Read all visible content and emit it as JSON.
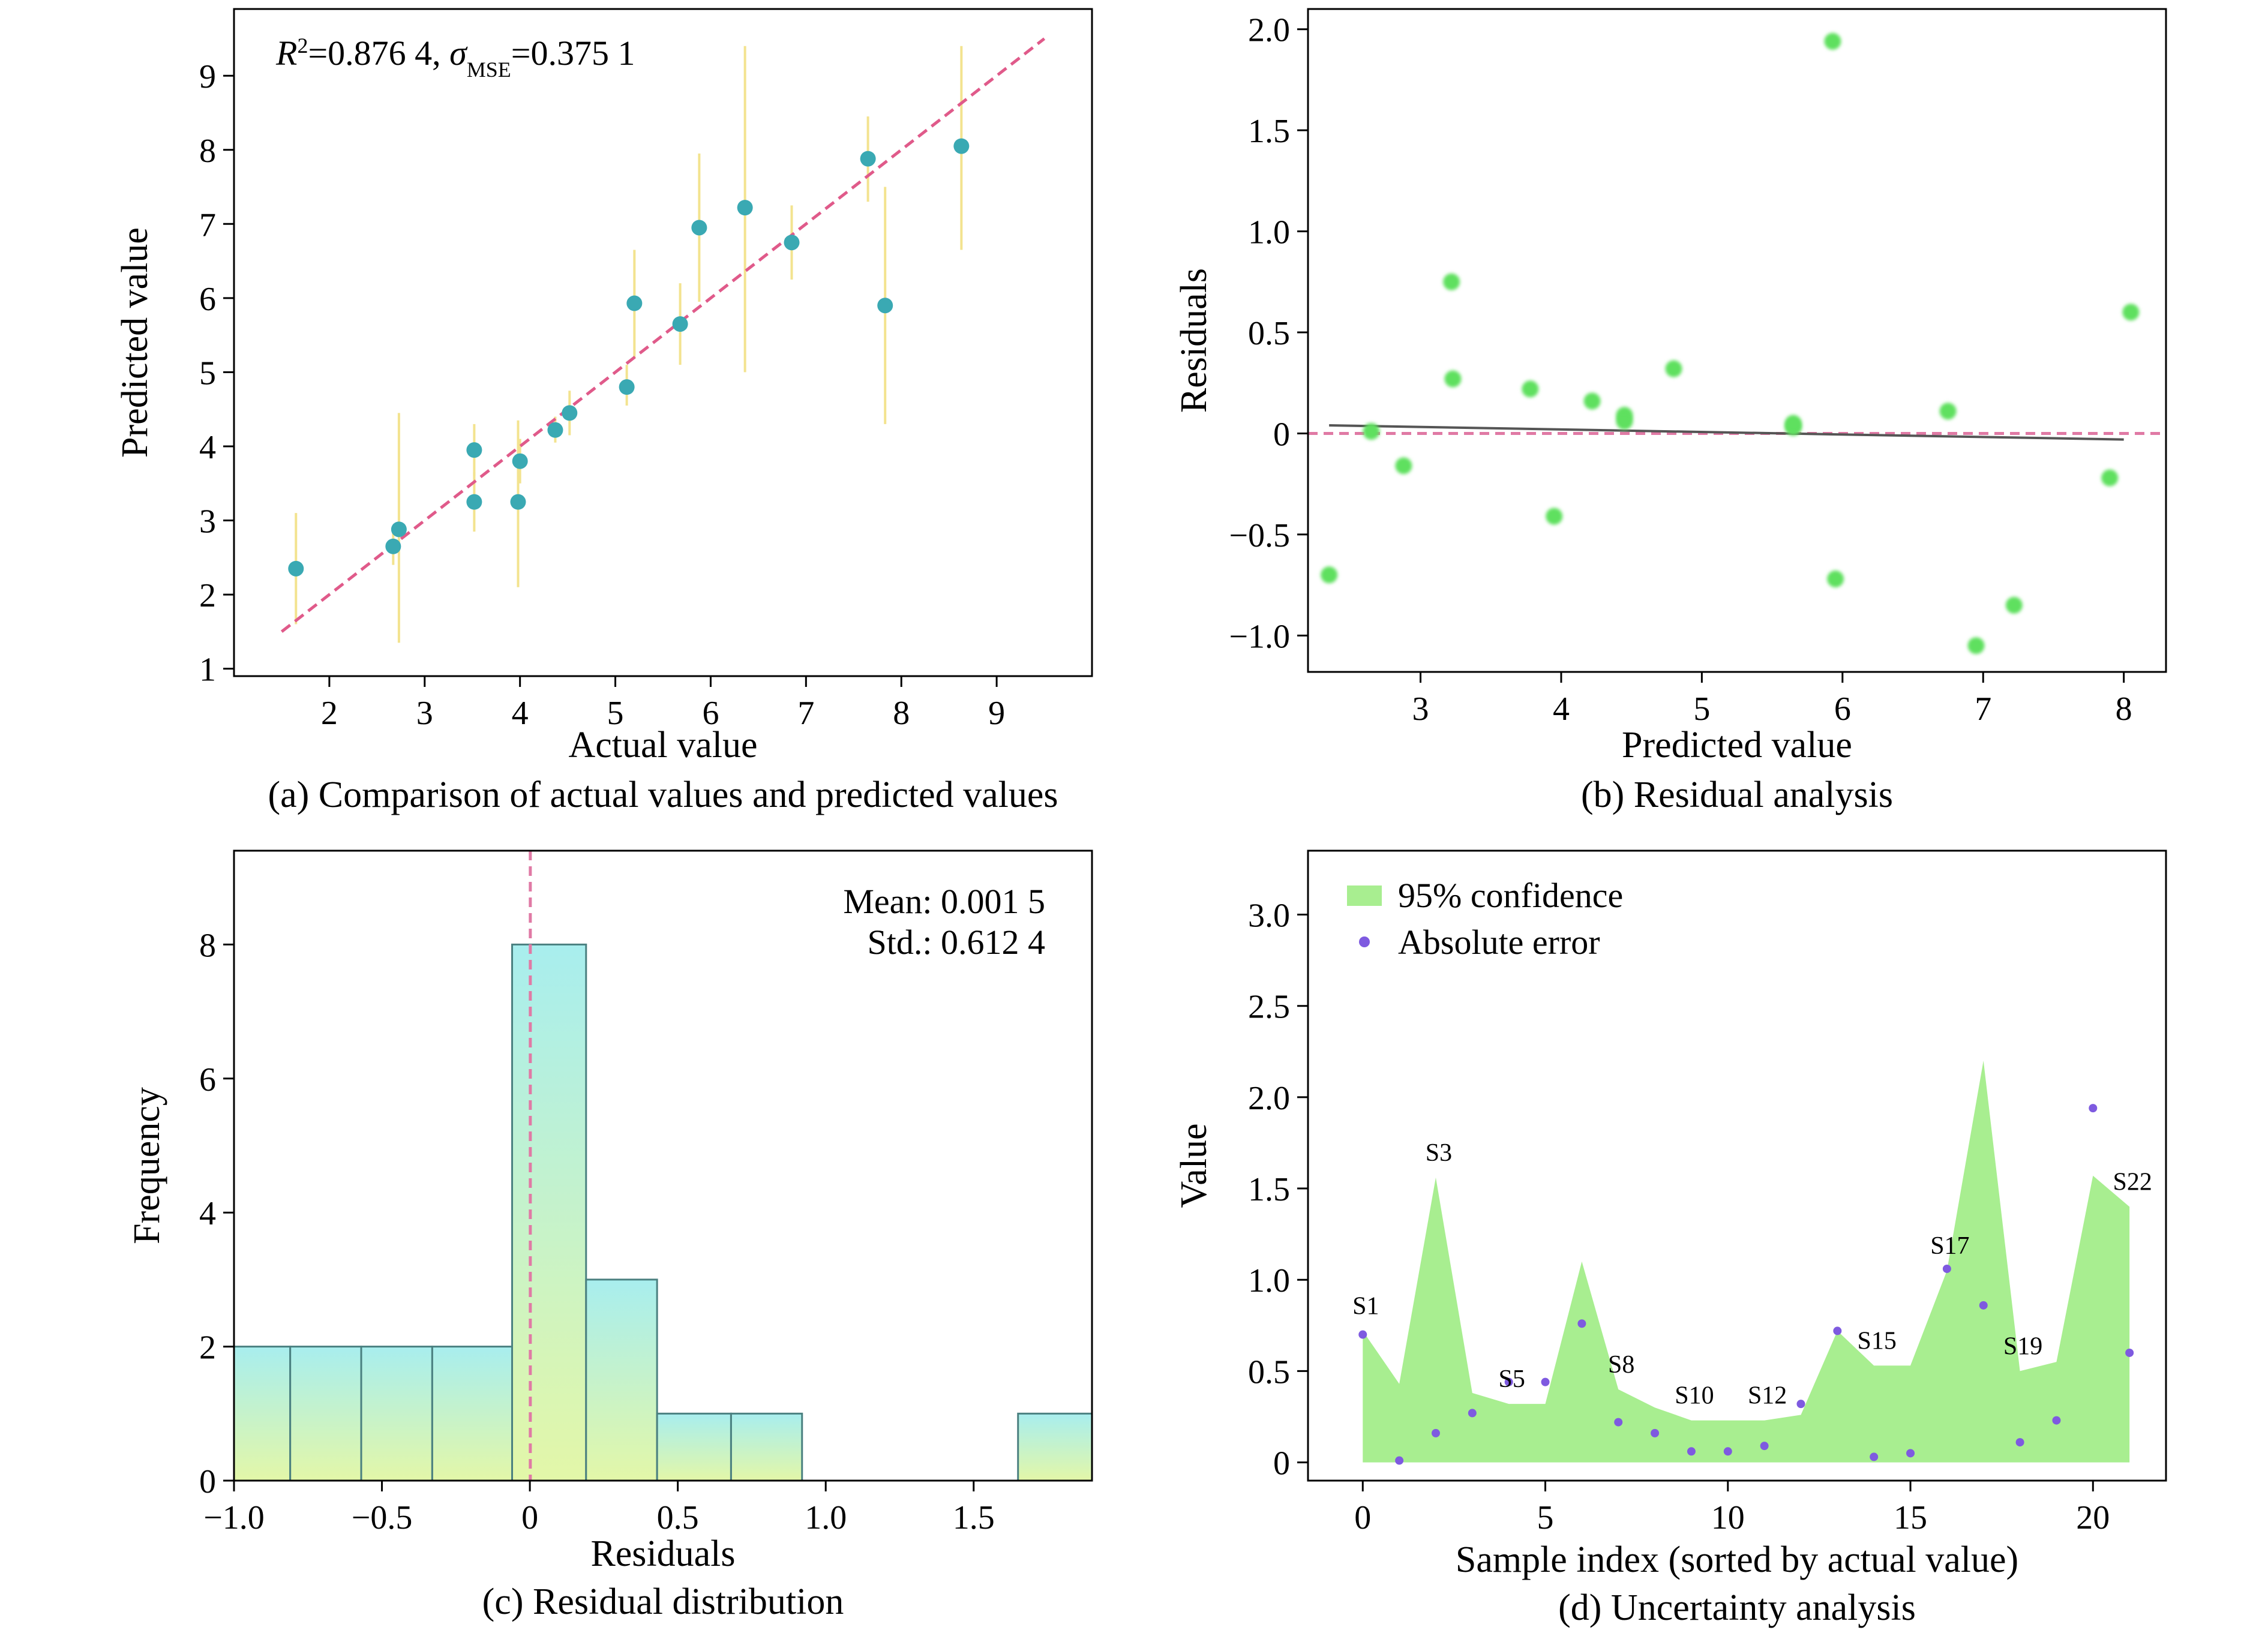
{
  "chart_data": [
    {
      "id": "a",
      "type": "scatter",
      "caption": "(a) Comparison of actual values and predicted values",
      "xlabel": "Actual value",
      "ylabel": "Predicted value",
      "xlim": [
        1.0,
        10.0
      ],
      "ylim": [
        0.9,
        9.9
      ],
      "xticks": [
        2,
        3,
        4,
        5,
        6,
        7,
        8,
        9
      ],
      "yticks": [
        1,
        2,
        3,
        4,
        5,
        6,
        7,
        8,
        9
      ],
      "annotation": {
        "r2_prefix": "R",
        "r2_sup": "2",
        "r2_value": "=0.876 4, ",
        "sigma": "σ",
        "sigma_sub": "MSE",
        "sigma_value": "=0.375 1"
      },
      "ideal_line": {
        "x": [
          1.5,
          9.5
        ],
        "y": [
          1.5,
          9.5
        ],
        "color": "#e05a8a"
      },
      "colors": {
        "point": "#3aa9b3",
        "errorbar": "#f3e38f"
      },
      "points": [
        {
          "x": 1.65,
          "y": 2.35,
          "lo": 1.6,
          "hi": 3.1
        },
        {
          "x": 2.67,
          "y": 2.65,
          "lo": 2.4,
          "hi": 2.9
        },
        {
          "x": 2.73,
          "y": 2.88,
          "lo": 1.35,
          "hi": 4.45
        },
        {
          "x": 3.52,
          "y": 3.95,
          "lo": 3.6,
          "hi": 4.3
        },
        {
          "x": 3.52,
          "y": 3.25,
          "lo": 2.85,
          "hi": 3.65
        },
        {
          "x": 3.98,
          "y": 3.25,
          "lo": 2.1,
          "hi": 4.35
        },
        {
          "x": 4.0,
          "y": 3.8,
          "lo": 3.5,
          "hi": 4.1
        },
        {
          "x": 4.37,
          "y": 4.22,
          "lo": 4.05,
          "hi": 4.4
        },
        {
          "x": 4.52,
          "y": 4.45,
          "lo": 4.15,
          "hi": 4.75
        },
        {
          "x": 5.12,
          "y": 4.8,
          "lo": 4.55,
          "hi": 5.1
        },
        {
          "x": 5.2,
          "y": 5.93,
          "lo": 5.2,
          "hi": 6.65
        },
        {
          "x": 5.68,
          "y": 5.65,
          "lo": 5.1,
          "hi": 6.2
        },
        {
          "x": 5.88,
          "y": 6.95,
          "lo": 5.95,
          "hi": 7.95
        },
        {
          "x": 6.36,
          "y": 7.22,
          "lo": 5.0,
          "hi": 9.4
        },
        {
          "x": 6.85,
          "y": 6.75,
          "lo": 6.25,
          "hi": 7.25
        },
        {
          "x": 7.65,
          "y": 7.88,
          "lo": 7.3,
          "hi": 8.45
        },
        {
          "x": 7.83,
          "y": 5.9,
          "lo": 4.3,
          "hi": 7.5
        },
        {
          "x": 8.63,
          "y": 8.05,
          "lo": 6.65,
          "hi": 9.4
        }
      ]
    },
    {
      "id": "b",
      "type": "scatter",
      "caption": "(b) Residual analysis",
      "xlabel": "Predicted value",
      "ylabel": "Residuals",
      "xlim": [
        2.2,
        8.3
      ],
      "ylim": [
        -1.18,
        2.1
      ],
      "xticks": [
        3,
        4,
        5,
        6,
        7,
        8
      ],
      "yticks": [
        -1.0,
        -0.5,
        0,
        0.5,
        1.0,
        1.5,
        2.0
      ],
      "ytick_labels": [
        "−1.0",
        "−0.5",
        "0",
        "0.5",
        "1.0",
        "1.5",
        "2.0"
      ],
      "zero_line": {
        "y": 0,
        "color": "#e07aa5"
      },
      "trend_line": {
        "x": [
          2.35,
          8.0
        ],
        "y": [
          0.04,
          -0.03
        ],
        "color": "#555555"
      },
      "colors": {
        "point": "#5fe05f"
      },
      "points": [
        {
          "x": 2.35,
          "y": -0.7
        },
        {
          "x": 2.65,
          "y": 0.01
        },
        {
          "x": 2.88,
          "y": -0.16
        },
        {
          "x": 3.22,
          "y": 0.75
        },
        {
          "x": 3.23,
          "y": 0.27
        },
        {
          "x": 3.78,
          "y": 0.22
        },
        {
          "x": 3.95,
          "y": -0.41
        },
        {
          "x": 4.22,
          "y": 0.16
        },
        {
          "x": 4.45,
          "y": 0.09
        },
        {
          "x": 4.45,
          "y": 0.06
        },
        {
          "x": 4.8,
          "y": 0.32
        },
        {
          "x": 5.65,
          "y": 0.03
        },
        {
          "x": 5.65,
          "y": 0.05
        },
        {
          "x": 5.93,
          "y": 1.94
        },
        {
          "x": 5.95,
          "y": -0.72
        },
        {
          "x": 6.75,
          "y": 0.11
        },
        {
          "x": 6.95,
          "y": -1.05
        },
        {
          "x": 7.22,
          "y": -0.85
        },
        {
          "x": 7.9,
          "y": -0.22
        },
        {
          "x": 8.05,
          "y": 0.6
        }
      ]
    },
    {
      "id": "c",
      "type": "bar",
      "caption": "(c) Residual distribution",
      "xlabel": "Residuals",
      "ylabel": "Frequency",
      "xlim": [
        -1.0,
        1.9
      ],
      "ylim": [
        0,
        9.4
      ],
      "xticks": [
        -1.0,
        -0.5,
        0,
        0.5,
        1.0,
        1.5
      ],
      "xtick_labels": [
        "−1.0",
        "−0.5",
        "0",
        "0.5",
        "1.0",
        "1.5"
      ],
      "yticks": [
        0,
        2,
        4,
        6,
        8
      ],
      "stats": {
        "mean": "Mean: 0.001 5",
        "std": "Std.: 0.612 4"
      },
      "mean_line": {
        "x": 0.0015,
        "color": "#e07aa5"
      },
      "colors": {
        "bar_top": "#a8eeee",
        "bar_bottom": "#e3f7a8",
        "bar_edge": "#4a8080"
      },
      "bins": [
        {
          "x0": -1.05,
          "x1": -0.81,
          "count": 2
        },
        {
          "x0": -0.81,
          "x1": -0.57,
          "count": 2
        },
        {
          "x0": -0.57,
          "x1": -0.33,
          "count": 2
        },
        {
          "x0": -0.33,
          "x1": -0.06,
          "count": 2
        },
        {
          "x0": -0.06,
          "x1": 0.19,
          "count": 8
        },
        {
          "x0": 0.19,
          "x1": 0.43,
          "count": 3
        },
        {
          "x0": 0.43,
          "x1": 0.68,
          "count": 1
        },
        {
          "x0": 0.68,
          "x1": 0.92,
          "count": 1
        },
        {
          "x0": 1.65,
          "x1": 1.9,
          "count": 1
        }
      ]
    },
    {
      "id": "d",
      "type": "area",
      "caption": "(d) Uncertainty analysis",
      "xlabel": "Sample index (sorted by actual value)",
      "ylabel": "Value",
      "xlim": [
        -1.5,
        22.0
      ],
      "ylim": [
        -0.1,
        3.35
      ],
      "xticks": [
        0,
        5,
        10,
        15,
        20
      ],
      "yticks": [
        0,
        0.5,
        1.0,
        1.5,
        2.0,
        2.5,
        3.0
      ],
      "ytick_labels": [
        "0",
        "0.5",
        "1.0",
        "1.5",
        "2.0",
        "2.5",
        "3.0"
      ],
      "legend": {
        "position": "top-left",
        "area_label": "95% confidence",
        "point_label": "Absolute error"
      },
      "colors": {
        "area": "#a8ee90",
        "point": "#7e5ae0"
      },
      "confidence": [
        0.72,
        0.43,
        1.56,
        0.38,
        0.32,
        0.32,
        1.1,
        0.4,
        0.3,
        0.23,
        0.23,
        0.23,
        0.26,
        0.72,
        0.53,
        0.53,
        1.05,
        2.2,
        0.5,
        0.55,
        1.57,
        1.4
      ],
      "abs_error": [
        0.7,
        0.01,
        0.16,
        0.27,
        0.44,
        0.44,
        0.76,
        0.22,
        0.16,
        0.06,
        0.06,
        0.09,
        0.32,
        0.72,
        0.03,
        0.05,
        1.06,
        0.86,
        0.11,
        0.23,
        1.94,
        0.6
      ],
      "sample_labels": [
        {
          "i": 0,
          "label": "S1"
        },
        {
          "i": 2,
          "label": "S3"
        },
        {
          "i": 4,
          "label": "S5"
        },
        {
          "i": 7,
          "label": "S8"
        },
        {
          "i": 9,
          "label": "S10"
        },
        {
          "i": 11,
          "label": "S12"
        },
        {
          "i": 14,
          "label": "S15"
        },
        {
          "i": 16,
          "label": "S17"
        },
        {
          "i": 18,
          "label": "S19"
        },
        {
          "i": 21,
          "label": "S22"
        }
      ]
    }
  ]
}
